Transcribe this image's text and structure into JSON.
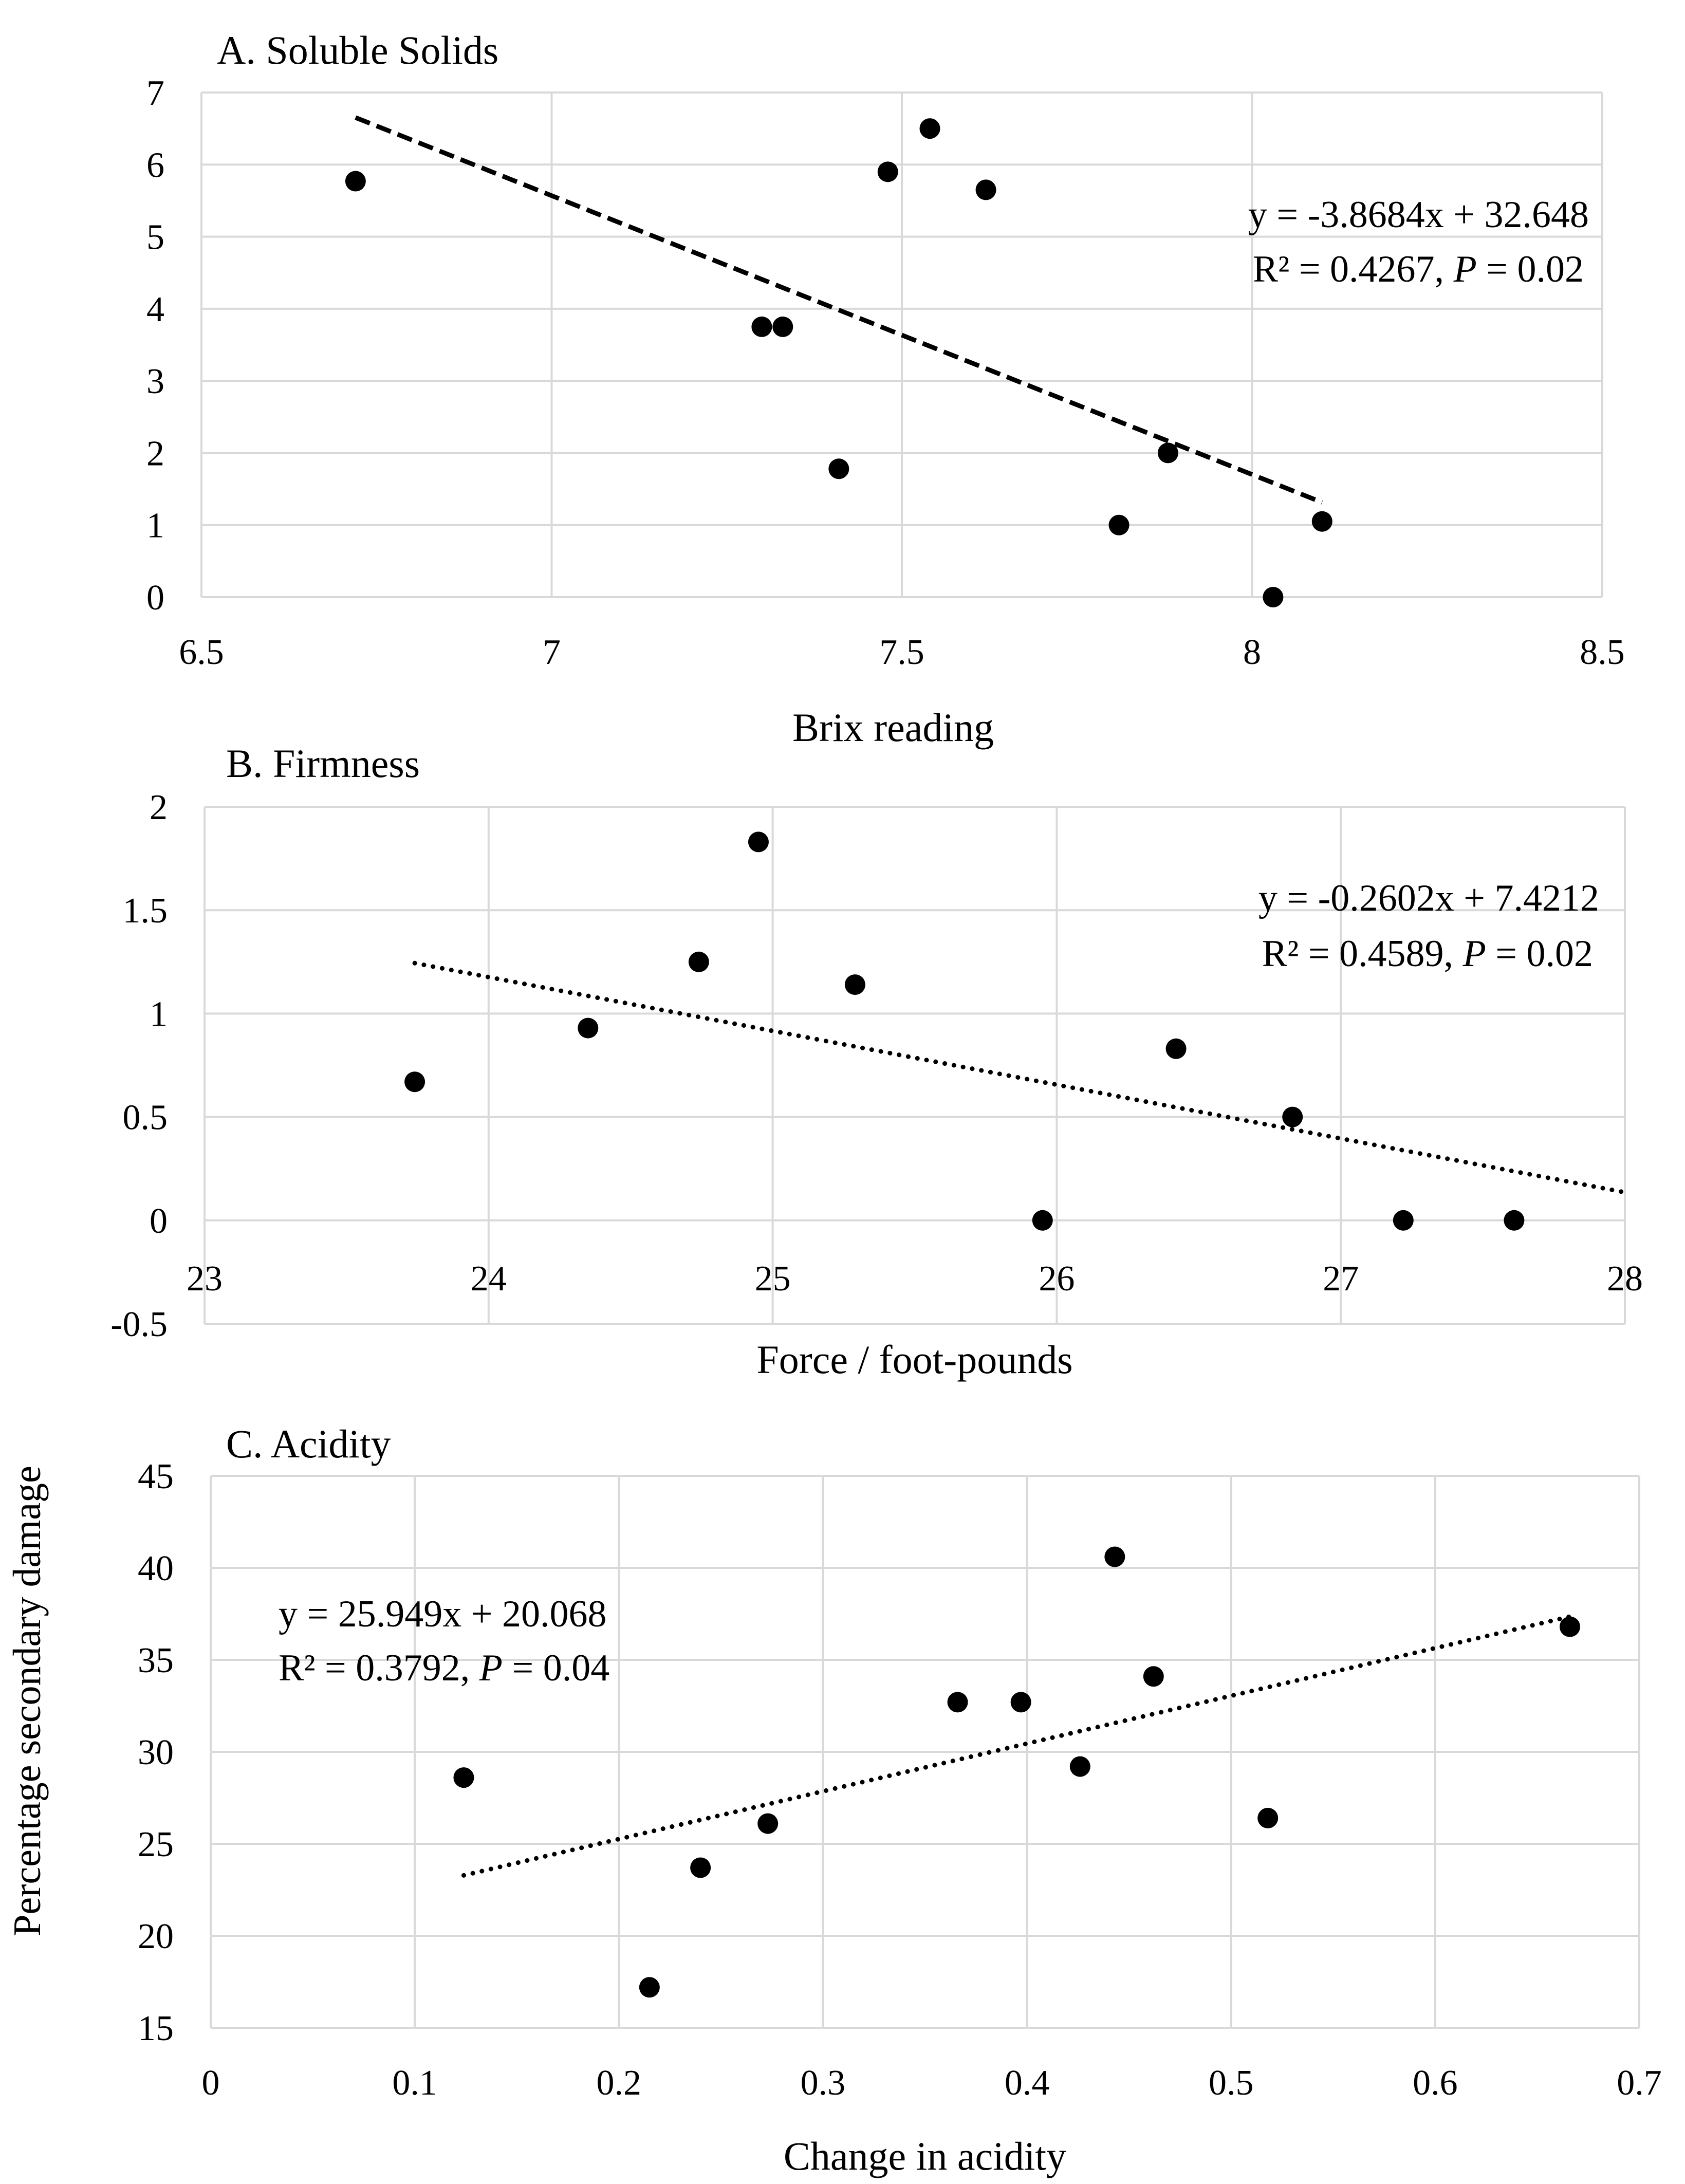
{
  "shared_ylabel": "Percentage secondary damage",
  "chart_data": [
    {
      "type": "scatter",
      "title": "A. Soluble Solids",
      "xlabel": "Brix reading",
      "ylabel": "",
      "xlim": [
        6.5,
        8.5
      ],
      "ylim": [
        0,
        7
      ],
      "x_ticks": [
        6.5,
        7,
        7.5,
        8,
        8.5
      ],
      "y_ticks": [
        0,
        1,
        2,
        3,
        4,
        5,
        6,
        7
      ],
      "grid": true,
      "x": [
        6.72,
        7.3,
        7.33,
        7.41,
        7.48,
        7.54,
        7.62,
        7.81,
        7.88,
        8.03,
        8.1
      ],
      "y": [
        5.77,
        3.75,
        3.75,
        1.78,
        5.9,
        6.5,
        5.65,
        1.0,
        2.0,
        0.0,
        1.05
      ],
      "trendline": {
        "style": "dashed",
        "slope": -3.8684,
        "intercept": 32.648,
        "x_range": [
          6.72,
          8.1
        ]
      },
      "equation": "y = -3.8684x + 32.648",
      "r2_text": "R² = 0.4267, ",
      "p_label": "P",
      "p_value": " = 0.02"
    },
    {
      "type": "scatter",
      "title": "B. Firmness",
      "xlabel": "Force / foot-pounds",
      "ylabel": "",
      "xlim": [
        23,
        28
      ],
      "ylim": [
        -0.5,
        2
      ],
      "x_ticks": [
        23,
        24,
        25,
        26,
        27,
        28
      ],
      "y_ticks": [
        -0.5,
        0,
        0.5,
        1,
        1.5,
        2
      ],
      "grid": true,
      "x": [
        23.74,
        24.35,
        24.74,
        24.95,
        25.29,
        25.95,
        26.42,
        26.83,
        27.22,
        27.61
      ],
      "y": [
        0.67,
        0.93,
        1.25,
        1.83,
        1.14,
        0.0,
        0.83,
        0.5,
        0.0,
        0.0
      ],
      "trendline": {
        "style": "dotted",
        "slope": -0.2602,
        "intercept": 7.4212,
        "x_range": [
          23.74,
          28.0
        ]
      },
      "equation": "y = -0.2602x + 7.4212",
      "r2_text": "R² = 0.4589, ",
      "p_label": "P",
      "p_value": " = 0.02"
    },
    {
      "type": "scatter",
      "title": "C. Acidity",
      "xlabel": "Change in acidity",
      "ylabel": "Percentage secondary damage",
      "xlim": [
        0,
        0.7
      ],
      "ylim": [
        15,
        45
      ],
      "x_ticks": [
        0,
        0.1,
        0.2,
        0.3,
        0.4,
        0.5,
        0.6,
        0.7
      ],
      "y_ticks": [
        15,
        20,
        25,
        30,
        35,
        40,
        45
      ],
      "grid": true,
      "x": [
        0.124,
        0.215,
        0.24,
        0.273,
        0.366,
        0.397,
        0.426,
        0.443,
        0.462,
        0.518,
        0.666
      ],
      "y": [
        28.6,
        17.2,
        23.7,
        26.1,
        32.7,
        32.7,
        29.2,
        40.6,
        34.1,
        26.4,
        36.8
      ],
      "trendline": {
        "style": "dotted",
        "slope": 25.949,
        "intercept": 20.068,
        "x_range": [
          0.124,
          0.666
        ]
      },
      "equation": "y = 25.949x + 20.068",
      "r2_text": "R² = 0.3792, ",
      "p_label": "P",
      "p_value": " = 0.04"
    }
  ]
}
